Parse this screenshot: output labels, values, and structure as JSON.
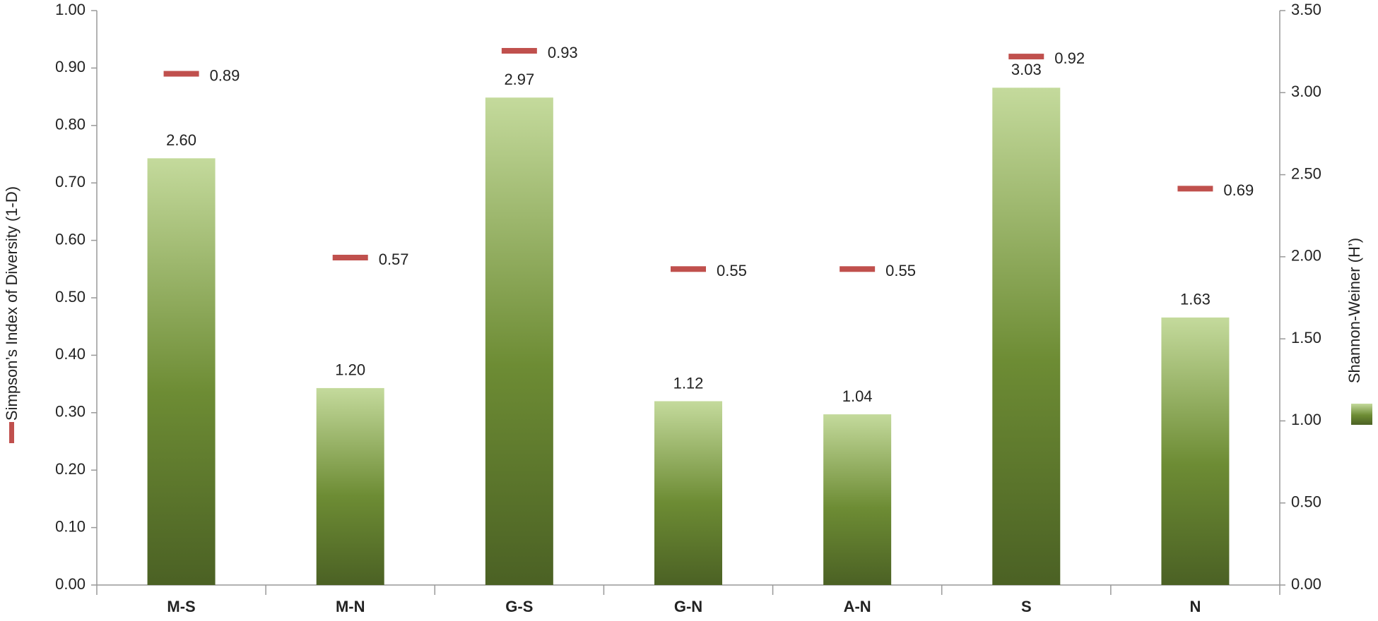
{
  "chart_data": {
    "type": "bar",
    "categories": [
      "M-S",
      "M-N",
      "G-S",
      "G-N",
      "A-N",
      "S",
      "N"
    ],
    "y_label": "Simpson’s Index of Diversity (1-D)",
    "y2_label": "Shannon-Weiner (H’)",
    "series": [
      {
        "type": "bar",
        "axis": "y2",
        "color": "#5f7a2e",
        "values": [
          2.6,
          1.2,
          2.97,
          1.12,
          1.04,
          3.03,
          1.63
        ],
        "value_labels": [
          "2.60",
          "1.20",
          "2.97",
          "1.12",
          "1.04",
          "3.03",
          "1.63"
        ]
      },
      {
        "type": "marker",
        "axis": "y",
        "color": "#c0504d",
        "values": [
          0.89,
          0.57,
          0.93,
          0.55,
          0.55,
          0.92,
          0.69
        ]
      }
    ],
    "ylim": [
      0,
      1
    ],
    "yticks": [
      {
        "value": 0,
        "label": "0.00"
      },
      {
        "value": 0.1,
        "label": "0.10"
      },
      {
        "value": 0.2,
        "label": "0.20"
      },
      {
        "value": 0.3,
        "label": "0.30"
      },
      {
        "value": 0.4,
        "label": "0.40"
      },
      {
        "value": 0.5,
        "label": "0.50"
      },
      {
        "value": 0.6,
        "label": "0.60"
      },
      {
        "value": 0.7,
        "label": "0.70"
      },
      {
        "value": 0.8,
        "label": "0.80"
      },
      {
        "value": 0.9,
        "label": "0.90"
      },
      {
        "value": 1,
        "label": "1.00"
      }
    ],
    "y2lim": [
      0,
      3.5
    ],
    "y2ticks": [
      {
        "value": 0,
        "label": "0.00"
      },
      {
        "value": 0.5,
        "label": "0.50"
      },
      {
        "value": 1,
        "label": "1.00"
      },
      {
        "value": 1.5,
        "label": "1.50"
      },
      {
        "value": 2,
        "label": "2.00"
      },
      {
        "value": 2.5,
        "label": "2.50"
      },
      {
        "value": 3,
        "label": "3.00"
      },
      {
        "value": 3.5,
        "label": "3.50"
      }
    ]
  }
}
